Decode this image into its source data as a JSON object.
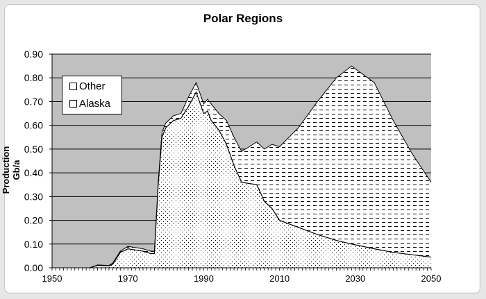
{
  "chart_data": {
    "type": "area",
    "stacked": true,
    "title": "Polar Regions",
    "xlabel": "",
    "ylabel": "Production Gb/a",
    "xlim": [
      1950,
      2050
    ],
    "ylim": [
      0,
      0.9
    ],
    "x_ticks": [
      "1950",
      "1970",
      "1990",
      "2010",
      "2030",
      "2050"
    ],
    "y_ticks": [
      "0.00",
      "0.10",
      "0.20",
      "0.30",
      "0.40",
      "0.50",
      "0.60",
      "0.70",
      "0.80",
      "0.90"
    ],
    "grid": "horizontal",
    "legend_position": "upper-left inside",
    "plot_background": "#c0c0c0",
    "x": [
      1960,
      1962,
      1965,
      1966,
      1968,
      1970,
      1972,
      1974,
      1976,
      1977,
      1978,
      1979,
      1980,
      1982,
      1984,
      1986,
      1988,
      1990,
      1991,
      1992,
      1994,
      1996,
      1998,
      2000,
      2002,
      2004,
      2006,
      2008,
      2010,
      2015,
      2020,
      2025,
      2029,
      2035,
      2040,
      2045,
      2050
    ],
    "series": [
      {
        "name": "Alaska",
        "pattern": "dotted",
        "values": [
          0.0,
          0.01,
          0.008,
          0.015,
          0.065,
          0.08,
          0.075,
          0.07,
          0.06,
          0.06,
          0.35,
          0.55,
          0.59,
          0.62,
          0.63,
          0.68,
          0.74,
          0.65,
          0.66,
          0.62,
          0.58,
          0.52,
          0.43,
          0.36,
          0.355,
          0.35,
          0.28,
          0.25,
          0.2,
          0.17,
          0.14,
          0.115,
          0.1,
          0.08,
          0.065,
          0.055,
          0.045
        ]
      },
      {
        "name": "Other",
        "pattern": "dashed",
        "values": [
          0.0,
          0.002,
          0.002,
          0.005,
          0.005,
          0.01,
          0.01,
          0.01,
          0.01,
          0.01,
          0.01,
          0.02,
          0.02,
          0.02,
          0.02,
          0.04,
          0.04,
          0.04,
          0.05,
          0.07,
          0.07,
          0.1,
          0.12,
          0.13,
          0.155,
          0.18,
          0.22,
          0.27,
          0.31,
          0.42,
          0.56,
          0.685,
          0.75,
          0.7,
          0.555,
          0.425,
          0.315
        ]
      }
    ]
  },
  "legend": {
    "items": [
      {
        "label": "Other"
      },
      {
        "label": "Alaska"
      }
    ]
  }
}
